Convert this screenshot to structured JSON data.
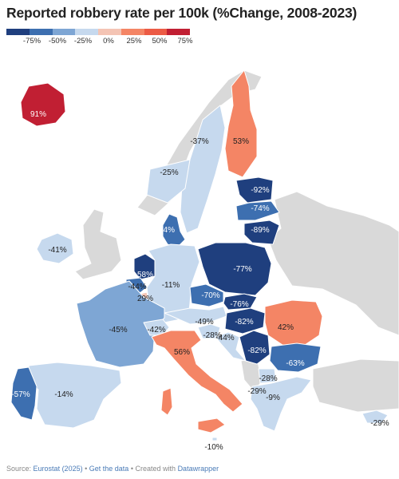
{
  "title": "Reported robbery rate per 100k (%Change, 2008-2023)",
  "legend": {
    "colors": [
      "#1f3f7e",
      "#3d6fb0",
      "#7ea6d4",
      "#c6d9ee",
      "#f4c4b4",
      "#f48565",
      "#ec5b45",
      "#c11f33"
    ],
    "ticks": [
      "-75%",
      "-50%",
      "-25%",
      "0%",
      "25%",
      "50%",
      "75%"
    ]
  },
  "regions": {
    "iceland": "91%",
    "finland": "53%",
    "sweden_north": "-37%",
    "sweden_south": "-25%",
    "estonia": "-92%",
    "latvia": "-74%",
    "lithuania": "-89%",
    "denmark": "64%",
    "ireland": "-41%",
    "netherlands": "58%",
    "belgium": "-44%",
    "luxembourg": "29%",
    "germany": "-11%",
    "poland": "-77%",
    "czechia": "-70%",
    "slovakia": "-76%",
    "austria": "-49%",
    "hungary": "-82%",
    "slovenia": "-28%",
    "croatia": "-44%",
    "romania": "42%",
    "serbia": "-82%",
    "bulgaria": "-63%",
    "france": "-45%",
    "switzerland": "-42%",
    "italy": "56%",
    "north_macedonia": "-28%",
    "albania": "-29%",
    "greece": "-9%",
    "malta": "-10%",
    "cyprus": "-29%",
    "portugal": "-57%",
    "spain": "-14%"
  },
  "footer": {
    "source_prefix": "Source:",
    "source": "Eurostat (2025)",
    "sep1": "•",
    "get_data": "Get the data",
    "sep2": "•",
    "created": "Created with",
    "tool": "Datawrapper"
  }
}
